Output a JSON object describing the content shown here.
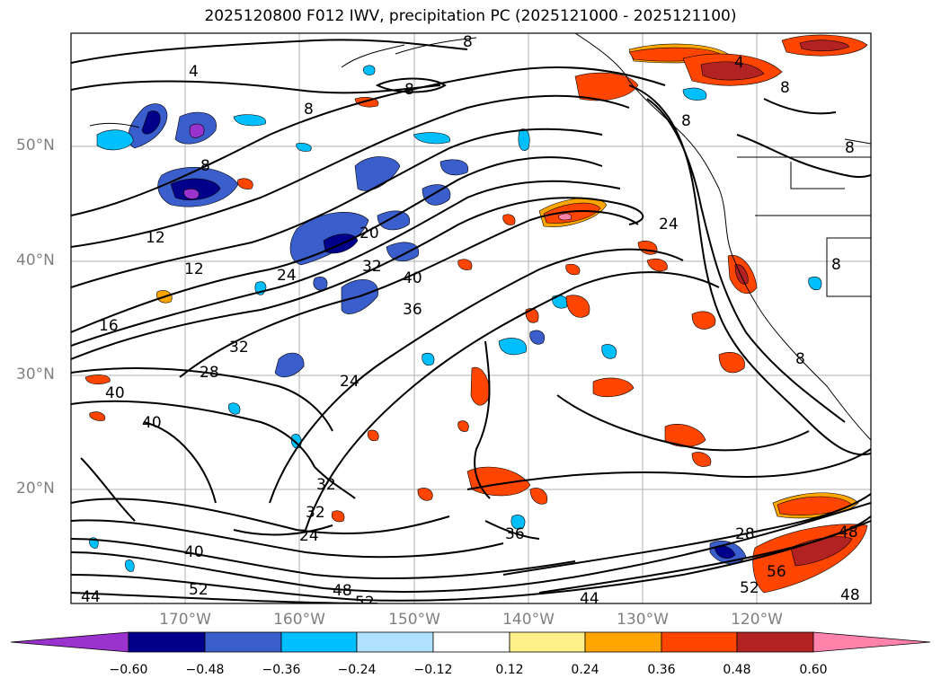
{
  "title": "2025120800 F012 IWV, precipitation PC (2025121000 - 2025121100)",
  "lat_labels": [
    "50°N",
    "40°N",
    "30°N",
    "20°N"
  ],
  "lon_labels": [
    "170°W",
    "160°W",
    "150°W",
    "140°W",
    "130°W",
    "120°W"
  ],
  "contour_labels": [
    "4",
    "8",
    "8",
    "8",
    "8",
    "8",
    "4",
    "8",
    "12",
    "12",
    "16",
    "20",
    "24",
    "24",
    "28",
    "32",
    "32",
    "36",
    "40",
    "24",
    "40",
    "40",
    "32",
    "32",
    "24",
    "28",
    "36",
    "40",
    "44",
    "48",
    "52",
    "52",
    "44",
    "48",
    "52",
    "56",
    "8",
    "8",
    "8"
  ],
  "colorbar": {
    "ticks": [
      "−0.60",
      "−0.48",
      "−0.36",
      "−0.24",
      "−0.12",
      "0.12",
      "0.24",
      "0.36",
      "0.48",
      "0.60"
    ],
    "colors": [
      "#9a32cd",
      "#00008b",
      "#3a5fcd",
      "#00bfff",
      "#b0e2ff",
      "#ffffff",
      "#fff08a",
      "#ffa500",
      "#ff4500",
      "#b22222",
      "#ff82ab"
    ]
  },
  "colors": {
    "contour": "#000000",
    "coast": "#000000",
    "grid": "#b0b0b0",
    "axis_labels": "#808080"
  }
}
